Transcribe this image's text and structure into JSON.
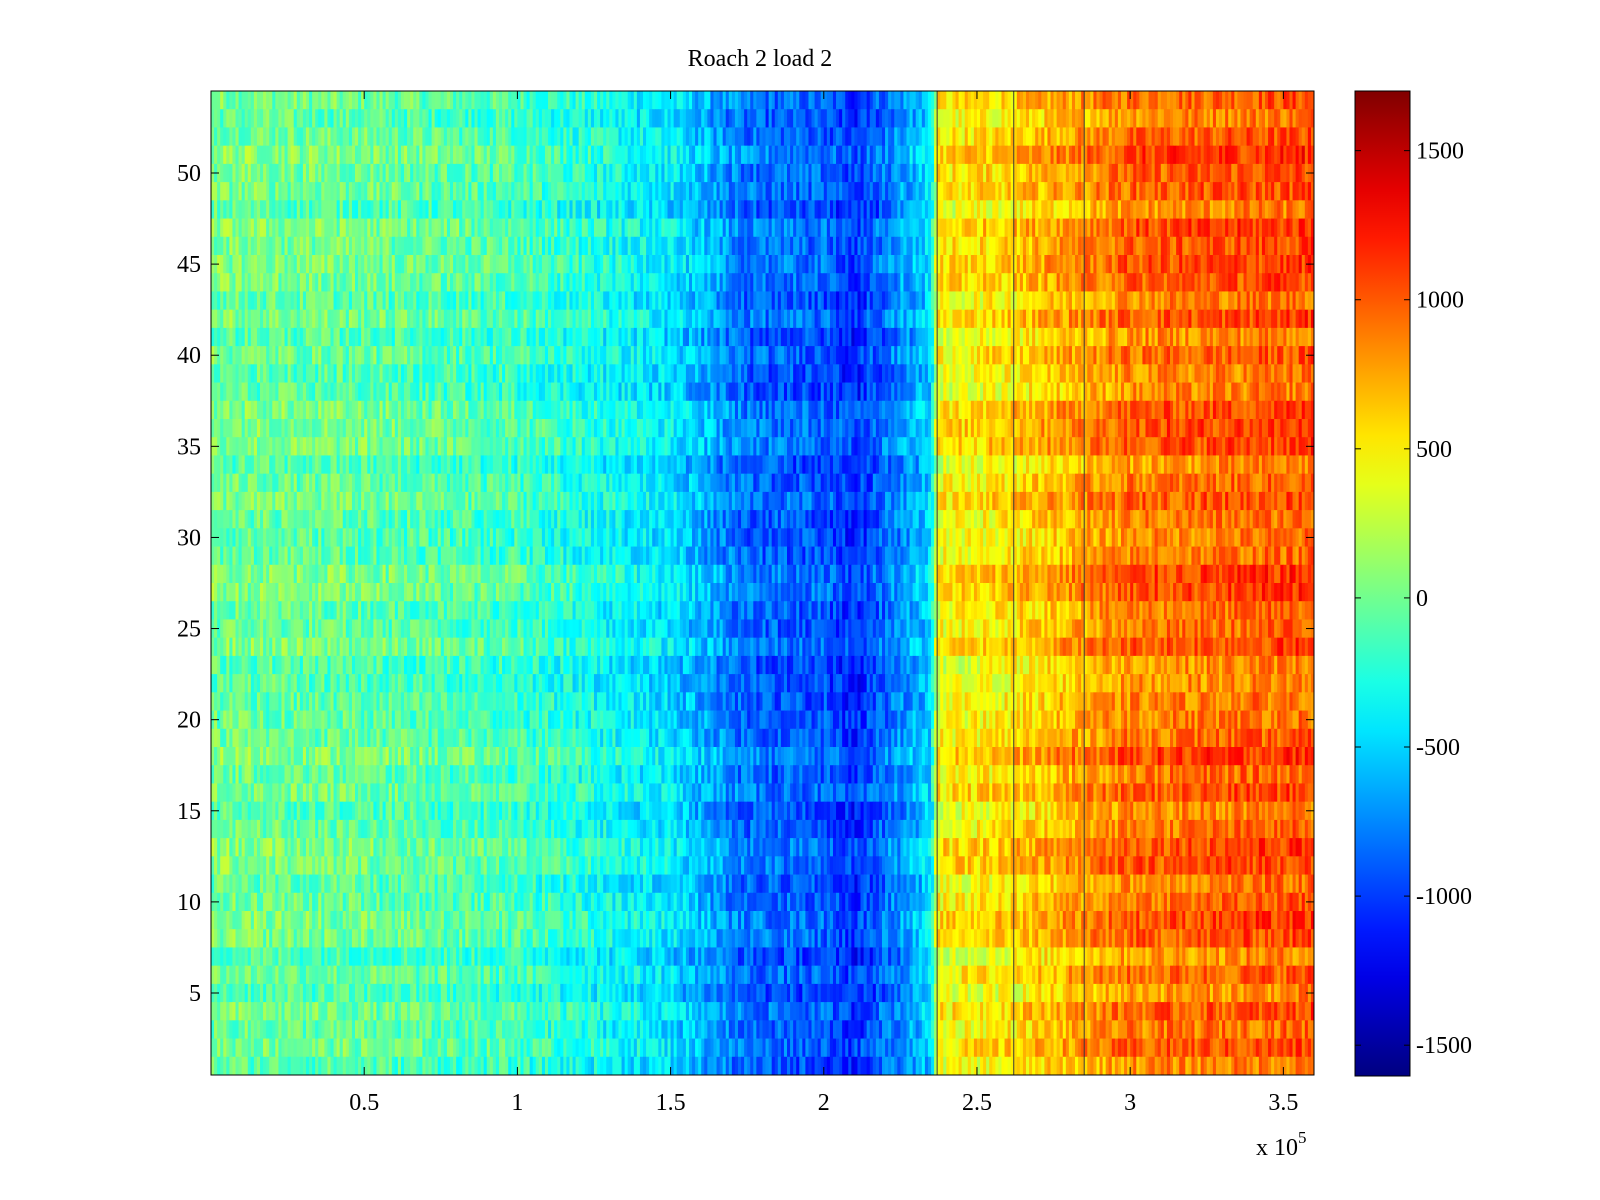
{
  "chart_data": {
    "type": "heatmap",
    "title": "Roach 2 load 2",
    "xlabel": "",
    "ylabel": "",
    "x_multiplier_text": "x 10",
    "x_multiplier_exponent": "5",
    "xlim": [
      0,
      3.6
    ],
    "ylim": [
      0.5,
      54.5
    ],
    "x_ticks": [
      {
        "value": 0.5,
        "label": "0.5"
      },
      {
        "value": 1,
        "label": "1"
      },
      {
        "value": 1.5,
        "label": "1.5"
      },
      {
        "value": 2,
        "label": "2"
      },
      {
        "value": 2.5,
        "label": "2.5"
      },
      {
        "value": 3,
        "label": "3"
      },
      {
        "value": 3.5,
        "label": "3.5"
      }
    ],
    "y_ticks": [
      {
        "value": 5,
        "label": "5"
      },
      {
        "value": 10,
        "label": "10"
      },
      {
        "value": 15,
        "label": "15"
      },
      {
        "value": 20,
        "label": "20"
      },
      {
        "value": 25,
        "label": "25"
      },
      {
        "value": 30,
        "label": "30"
      },
      {
        "value": 35,
        "label": "35"
      },
      {
        "value": 40,
        "label": "40"
      },
      {
        "value": 45,
        "label": "45"
      },
      {
        "value": 50,
        "label": "50"
      }
    ],
    "colorbar": {
      "colormap": "jet",
      "range": [
        -1600,
        1700
      ],
      "ticks": [
        {
          "value": -1500,
          "label": "-1500"
        },
        {
          "value": -1000,
          "label": "-1000"
        },
        {
          "value": -500,
          "label": "-500"
        },
        {
          "value": 0,
          "label": "0"
        },
        {
          "value": 500,
          "label": "500"
        },
        {
          "value": 1000,
          "label": "1000"
        },
        {
          "value": 1500,
          "label": "1500"
        }
      ]
    },
    "rows": 54,
    "value_profile_by_x": [
      {
        "x": 0.0,
        "value": 0
      },
      {
        "x": 0.5,
        "value": -50
      },
      {
        "x": 1.0,
        "value": -150
      },
      {
        "x": 1.5,
        "value": -450
      },
      {
        "x": 1.75,
        "value": -850
      },
      {
        "x": 2.0,
        "value": -900
      },
      {
        "x": 2.1,
        "value": -1050
      },
      {
        "x": 2.35,
        "value": -500
      },
      {
        "x": 2.37,
        "value": 450
      },
      {
        "x": 2.6,
        "value": 550
      },
      {
        "x": 3.0,
        "value": 900
      },
      {
        "x": 3.6,
        "value": 1000
      }
    ],
    "vertical_lines_x": [
      2.37,
      2.62,
      2.85
    ],
    "grid": false
  }
}
